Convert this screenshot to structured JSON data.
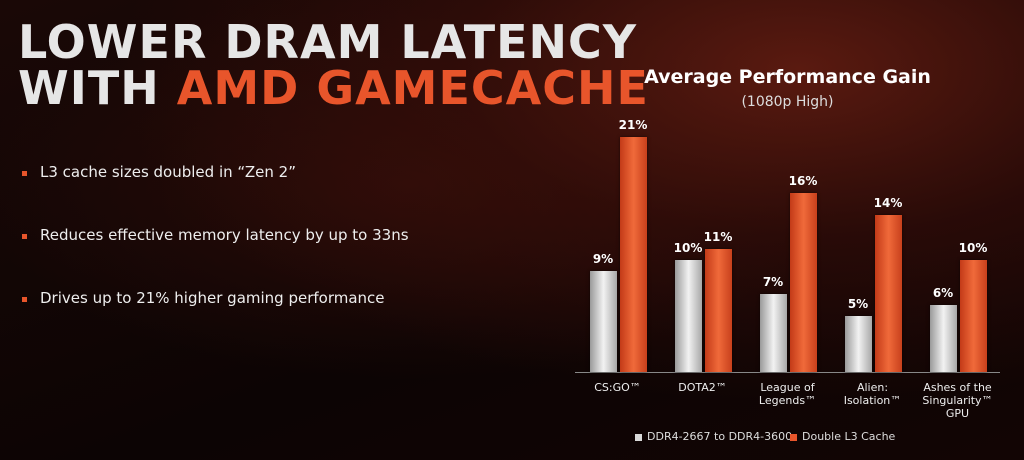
{
  "slide": {
    "title_line1": "LOWER DRAM LATENCY",
    "title_line2": "WITH",
    "title_highlight": "AMD GAMECACHE",
    "bullets": [
      "L3 cache sizes doubled in “Zen 2”",
      "Reduces effective memory latency by up to 33ns",
      "Drives up to 21% higher gaming performance"
    ]
  },
  "chart_data": {
    "type": "bar",
    "title": "Average Performance Gain",
    "subtitle": "(1080p High)",
    "categories": [
      "CS:GO™",
      "DOTA2™",
      "League of Legends™",
      "Alien: Isolation™",
      "Ashes of the Singularity™ GPU"
    ],
    "series": [
      {
        "name": "DDR4-2667 to DDR4-3600",
        "color": "#d9d9d9",
        "values": [
          9,
          10,
          7,
          5,
          6
        ],
        "value_labels": [
          "9%",
          "10%",
          "7%",
          "5%",
          "6%"
        ]
      },
      {
        "name": "Double L3 Cache",
        "color": "#e8552b",
        "values": [
          21,
          11,
          16,
          14,
          10
        ],
        "value_labels": [
          "21%",
          "11%",
          "16%",
          "14%",
          "10%"
        ]
      }
    ]
  }
}
